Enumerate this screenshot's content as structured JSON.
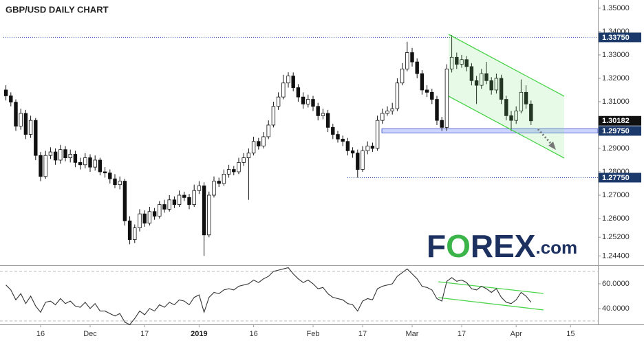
{
  "chart_data": [
    {
      "type": "candlestick",
      "title": "GBP/USD DAILY CHART",
      "ylim": [
        1.2403,
        1.3535
      ],
      "yticks": [
        {
          "value": 1.35,
          "label": "1.35000"
        },
        {
          "value": 1.34,
          "label": "1.34000"
        },
        {
          "value": 1.33,
          "label": "1.33000"
        },
        {
          "value": 1.32,
          "label": "1.32000"
        },
        {
          "value": 1.31,
          "label": "1.31000"
        },
        {
          "value": 1.29,
          "label": "1.29000"
        },
        {
          "value": 1.28,
          "label": "1.28000"
        },
        {
          "value": 1.27,
          "label": "1.27000"
        },
        {
          "value": 1.26,
          "label": "1.26000"
        },
        {
          "value": 1.252,
          "label": "1.25200"
        },
        {
          "value": 1.244,
          "label": "1.24400"
        }
      ],
      "levels": [
        {
          "value": 1.3375,
          "label": "1.33750",
          "style": "dotted",
          "color": "#1b3a6b"
        },
        {
          "value": 1.30182,
          "label": "1.30182",
          "style": "none",
          "color": "#111111"
        },
        {
          "value": 1.2975,
          "label": "1.29750",
          "style": "band",
          "color": "#1b3a6b"
        },
        {
          "value": 1.2775,
          "label": "1.27750",
          "style": "dotted",
          "color": "#1b3a6b"
        }
      ],
      "up_color": "#ffffff",
      "down_color": "#111111",
      "open": [
        1.315,
        1.3125,
        1.3098,
        1.2995,
        1.305,
        1.296,
        1.302,
        1.287,
        1.278,
        1.287,
        1.2885,
        1.285,
        1.2895,
        1.286,
        1.2875,
        1.284,
        1.283,
        1.286,
        1.282,
        1.285,
        1.28,
        1.2795,
        1.277,
        1.2745,
        1.276,
        1.259,
        1.251,
        1.256,
        1.262,
        1.258,
        1.263,
        1.261,
        1.266,
        1.264,
        1.268,
        1.266,
        1.27,
        1.269,
        1.266,
        1.272,
        1.274,
        1.253,
        1.27,
        1.276,
        1.275,
        1.279,
        1.281,
        1.28,
        1.284,
        1.286,
        1.288,
        1.293,
        1.291,
        1.295,
        1.3,
        1.308,
        1.312,
        1.318,
        1.321,
        1.316,
        1.312,
        1.309,
        1.311,
        1.308,
        1.304,
        1.305,
        1.299,
        1.296,
        1.294,
        1.293,
        1.289,
        1.288,
        1.281,
        1.289,
        1.291,
        1.29,
        1.302,
        1.305,
        1.306,
        1.307,
        1.318,
        1.324,
        1.331,
        1.327,
        1.322,
        1.315,
        1.314,
        1.311,
        1.302,
        1.299,
        1.324,
        1.329,
        1.326,
        1.328,
        1.325,
        1.319,
        1.317,
        1.322,
        1.319,
        1.315,
        1.32,
        1.311,
        1.304,
        1.302,
        1.306,
        1.314,
        1.309,
        null,
        null,
        null,
        null,
        null,
        null,
        null,
        null,
        null,
        null,
        null,
        null,
        null
      ],
      "high": [
        1.317,
        1.314,
        1.311,
        1.307,
        1.3065,
        1.304,
        1.303,
        1.2885,
        1.289,
        1.2905,
        1.29,
        1.2915,
        1.291,
        1.2895,
        1.289,
        1.286,
        1.288,
        1.2875,
        1.287,
        1.286,
        1.282,
        1.281,
        1.279,
        1.278,
        1.277,
        1.261,
        1.2575,
        1.264,
        1.2635,
        1.265,
        1.2645,
        1.2675,
        1.268,
        1.27,
        1.2695,
        1.272,
        1.2715,
        1.2705,
        1.2745,
        1.276,
        1.2755,
        1.2715,
        1.278,
        1.2775,
        1.281,
        1.283,
        1.2825,
        1.286,
        1.288,
        1.29,
        1.295,
        1.2945,
        1.297,
        1.302,
        1.31,
        1.314,
        1.3215,
        1.3226,
        1.3225,
        1.3175,
        1.314,
        1.313,
        1.3125,
        1.3095,
        1.307,
        1.3065,
        1.3005,
        1.2975,
        1.2955,
        1.2945,
        1.2905,
        1.2895,
        1.291,
        1.293,
        1.2925,
        1.304,
        1.307,
        1.308,
        1.3095,
        1.32,
        1.3265,
        1.3356,
        1.333,
        1.3285,
        1.3235,
        1.317,
        1.3155,
        1.3125,
        1.3035,
        1.326,
        1.3385,
        1.331,
        1.33,
        1.3295,
        1.3265,
        1.321,
        1.324,
        1.327,
        1.3205,
        1.322,
        1.3215,
        1.3125,
        1.306,
        1.308,
        1.3195,
        1.317,
        1.3105,
        null,
        null,
        null,
        null,
        null,
        null,
        null,
        null,
        null,
        null,
        null,
        null,
        null
      ],
      "low": [
        1.3105,
        1.308,
        1.2975,
        1.298,
        1.294,
        1.2945,
        1.285,
        1.276,
        1.277,
        1.2855,
        1.283,
        1.2835,
        1.2845,
        1.284,
        1.282,
        1.281,
        1.2815,
        1.28,
        1.2805,
        1.2785,
        1.2775,
        1.275,
        1.273,
        1.2725,
        1.257,
        1.249,
        1.2495,
        1.2545,
        1.2565,
        1.257,
        1.2595,
        1.26,
        1.2625,
        1.263,
        1.2645,
        1.265,
        1.2675,
        1.264,
        1.265,
        1.2705,
        1.244,
        1.252,
        1.269,
        1.2735,
        1.274,
        1.2775,
        1.2785,
        1.279,
        1.2825,
        1.268,
        1.287,
        1.2895,
        1.29,
        1.294,
        1.299,
        1.3065,
        1.311,
        1.316,
        1.3145,
        1.31,
        1.307,
        1.3075,
        1.306,
        1.302,
        1.3025,
        1.297,
        1.294,
        1.2925,
        1.291,
        1.287,
        1.286,
        1.2775,
        1.28,
        1.2875,
        1.2885,
        1.289,
        1.3005,
        1.304,
        1.3045,
        1.306,
        1.317,
        1.323,
        1.325,
        1.32,
        1.313,
        1.312,
        1.309,
        1.3,
        1.2975,
        1.2975,
        1.3225,
        1.324,
        1.3245,
        1.323,
        1.317,
        1.309,
        1.3155,
        1.3175,
        1.313,
        1.3135,
        1.309,
        1.302,
        1.2975,
        1.3005,
        1.305,
        1.307,
        1.3,
        null,
        null,
        null,
        null,
        null,
        null,
        null,
        null,
        null,
        null,
        null,
        null,
        null
      ],
      "close": [
        1.3125,
        1.3098,
        1.2995,
        1.305,
        1.296,
        1.302,
        1.287,
        1.278,
        1.287,
        1.2885,
        1.285,
        1.2895,
        1.286,
        1.2875,
        1.284,
        1.283,
        1.286,
        1.282,
        1.285,
        1.28,
        1.2795,
        1.277,
        1.2745,
        1.276,
        1.259,
        1.251,
        1.256,
        1.262,
        1.258,
        1.263,
        1.261,
        1.266,
        1.264,
        1.268,
        1.266,
        1.27,
        1.269,
        1.266,
        1.272,
        1.274,
        1.253,
        1.27,
        1.276,
        1.275,
        1.279,
        1.281,
        1.28,
        1.284,
        1.286,
        1.288,
        1.293,
        1.291,
        1.295,
        1.3,
        1.308,
        1.312,
        1.318,
        1.321,
        1.316,
        1.312,
        1.309,
        1.311,
        1.308,
        1.304,
        1.305,
        1.299,
        1.296,
        1.294,
        1.293,
        1.289,
        1.288,
        1.281,
        1.289,
        1.291,
        1.29,
        1.302,
        1.305,
        1.306,
        1.307,
        1.318,
        1.324,
        1.331,
        1.327,
        1.322,
        1.315,
        1.314,
        1.311,
        1.302,
        1.299,
        1.324,
        1.329,
        1.326,
        1.328,
        1.325,
        1.319,
        1.317,
        1.322,
        1.319,
        1.315,
        1.32,
        1.311,
        1.304,
        1.302,
        1.306,
        1.314,
        1.309,
        1.30182,
        null,
        null,
        null,
        null,
        null,
        null,
        null,
        null,
        null,
        null,
        null,
        null,
        null
      ],
      "logo": [
        "F",
        "O",
        "REX",
        ".com"
      ]
    },
    {
      "type": "line",
      "color": "#333333",
      "categories": [
        null,
        null,
        null,
        null,
        null,
        null,
        null,
        "16",
        null,
        null,
        null,
        null,
        null,
        null,
        null,
        null,
        null,
        "Dec",
        null,
        null,
        null,
        null,
        null,
        null,
        null,
        null,
        null,
        null,
        "17",
        null,
        null,
        null,
        null,
        null,
        null,
        null,
        null,
        null,
        null,
        "2019",
        null,
        null,
        null,
        null,
        null,
        null,
        null,
        null,
        null,
        null,
        "16",
        null,
        null,
        null,
        null,
        null,
        null,
        null,
        null,
        null,
        null,
        null,
        "Feb",
        null,
        null,
        null,
        null,
        null,
        null,
        null,
        null,
        null,
        "17",
        null,
        null,
        null,
        null,
        null,
        null,
        null,
        null,
        null,
        "Mar",
        null,
        null,
        null,
        null,
        null,
        null,
        null,
        null,
        null,
        "17",
        null,
        null,
        null,
        null,
        null,
        null,
        null,
        null,
        null,
        null,
        "Apr",
        null,
        null,
        null,
        null,
        null,
        null,
        null,
        null,
        null,
        null,
        "15",
        null,
        null,
        null,
        null,
        null
      ],
      "values": [
        59,
        55,
        47,
        52,
        44,
        50,
        42,
        37,
        45,
        46,
        43,
        48,
        44,
        46,
        42,
        41,
        45,
        40,
        44,
        38,
        38,
        36,
        34,
        36,
        29,
        27,
        32,
        38,
        35,
        40,
        38,
        43,
        41,
        45,
        43,
        47,
        46,
        43,
        49,
        51,
        37,
        49,
        53,
        52,
        55,
        56,
        55,
        58,
        59,
        60,
        63,
        61,
        64,
        66,
        70,
        71,
        72,
        73,
        68,
        64,
        61,
        63,
        60,
        56,
        57,
        52,
        49,
        48,
        47,
        44,
        43,
        38,
        46,
        48,
        47,
        56,
        58,
        59,
        60,
        66,
        69,
        72,
        68,
        64,
        58,
        57,
        55,
        48,
        46,
        62,
        65,
        62,
        63,
        61,
        56,
        55,
        58,
        56,
        53,
        56,
        49,
        45,
        44,
        47,
        53,
        50,
        45,
        null,
        null,
        null,
        null,
        null,
        null,
        null,
        null,
        null,
        null,
        null,
        null,
        null
      ],
      "ylim": [
        27.2,
        74.4
      ],
      "yticks": [
        {
          "value": 60,
          "label": "60.0000"
        },
        {
          "value": 40,
          "label": "40.0000"
        }
      ],
      "bands": [
        70,
        30
      ]
    }
  ]
}
